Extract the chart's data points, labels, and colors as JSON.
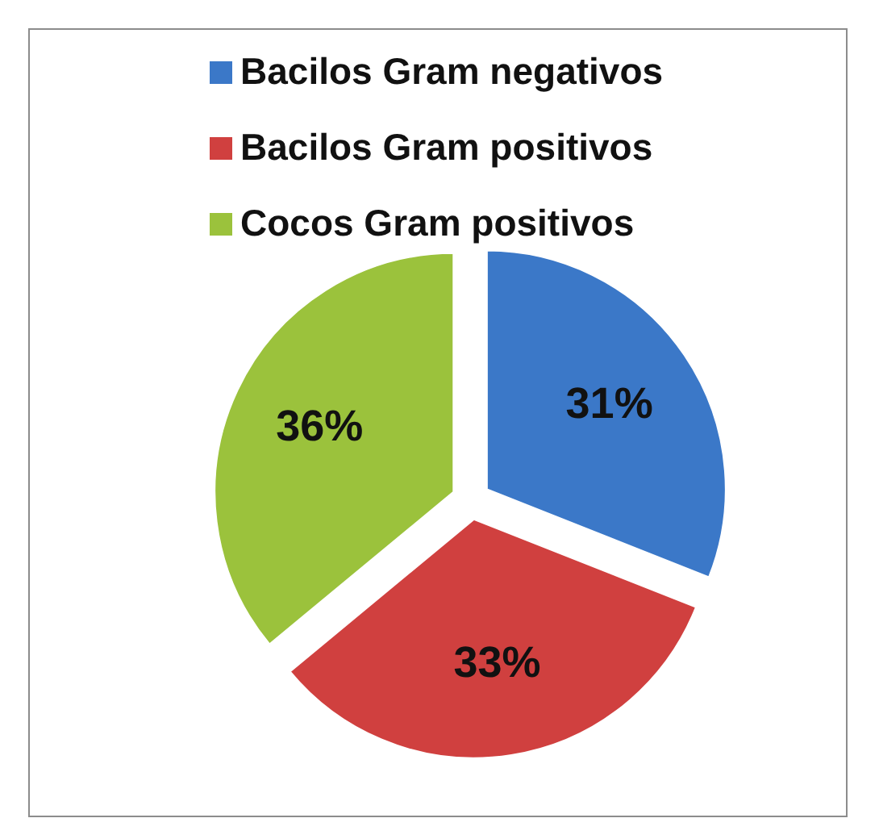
{
  "chart_data": {
    "type": "pie",
    "categories": [
      "Bacilos Gram negativos",
      "Bacilos Gram positivos",
      "Cocos Gram positivos"
    ],
    "values": [
      31,
      33,
      36
    ],
    "colors": [
      "#3b78c8",
      "#d0403f",
      "#9bc23c"
    ],
    "value_labels": [
      "31%",
      "33%",
      "36%"
    ],
    "legend": "top"
  }
}
